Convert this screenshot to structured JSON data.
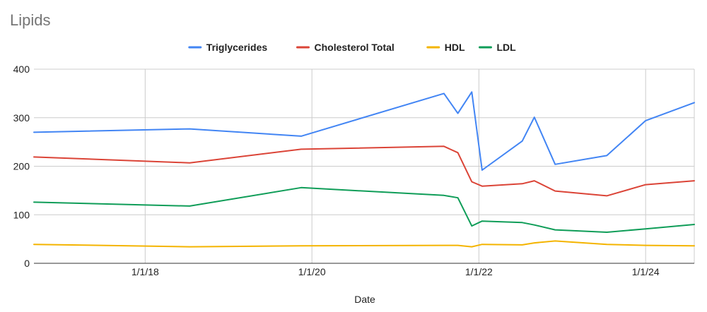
{
  "chart_data": {
    "type": "line",
    "title": "Lipids",
    "xlabel": "Date",
    "ylabel": "",
    "ylim": [
      0,
      400
    ],
    "xlim": [
      "2016-09-01",
      "2024-08-01"
    ],
    "yticks": [
      0,
      100,
      200,
      300,
      400
    ],
    "xticks": [
      {
        "date": "2018-01-01",
        "label": "1/1/18"
      },
      {
        "date": "2020-01-01",
        "label": "1/1/20"
      },
      {
        "date": "2022-01-01",
        "label": "1/1/22"
      },
      {
        "date": "2024-01-01",
        "label": "1/1/24"
      }
    ],
    "grid": true,
    "legend_position": "top",
    "x": [
      "2016-09-01",
      "2018-07-15",
      "2019-11-15",
      "2021-08-01",
      "2021-10-01",
      "2021-12-01",
      "2022-01-15",
      "2022-07-10",
      "2022-09-01",
      "2022-12-01",
      "2023-07-15",
      "2024-01-01",
      "2024-08-01"
    ],
    "series": [
      {
        "name": "Triglycerides",
        "color": "#4285f4",
        "values": [
          270,
          277,
          262,
          350,
          309,
          353,
          192,
          252,
          301,
          204,
          222,
          294,
          331
        ]
      },
      {
        "name": "Cholesterol Total",
        "color": "#db4437",
        "values": [
          219,
          207,
          235,
          241,
          228,
          168,
          159,
          164,
          170,
          149,
          139,
          162,
          170
        ]
      },
      {
        "name": "HDL",
        "color": "#f4b400",
        "values": [
          39,
          34,
          36,
          37,
          37,
          34,
          39,
          38,
          42,
          46,
          39,
          37,
          36
        ]
      },
      {
        "name": "LDL",
        "color": "#0f9d58",
        "values": [
          126,
          118,
          156,
          140,
          135,
          77,
          87,
          84,
          79,
          69,
          64,
          71,
          80
        ]
      }
    ]
  }
}
